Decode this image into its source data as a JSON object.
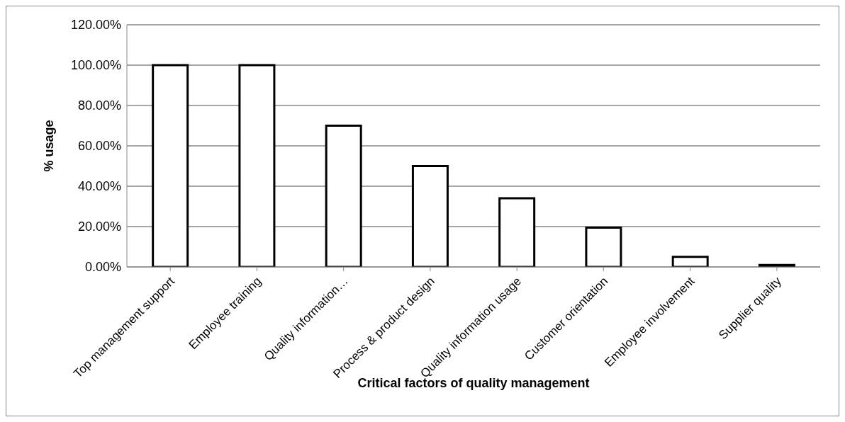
{
  "chart_data": {
    "type": "bar",
    "xlabel": "Critical factors of quality management",
    "ylabel": "% usage",
    "categories": [
      "Top management support",
      "Employee training",
      "Quality information…",
      "Process & product design",
      "Quality information usage",
      "Customer orientation",
      "Employee involvement",
      "Supplier quality"
    ],
    "values": [
      100,
      100,
      70,
      50,
      34,
      19.5,
      5,
      1
    ],
    "color": "#ffffff",
    "ylim": [
      0,
      120
    ],
    "yticks": [
      {
        "value": 0,
        "label": "0.00%"
      },
      {
        "value": 20,
        "label": "20.00%"
      },
      {
        "value": 40,
        "label": "40.00%"
      },
      {
        "value": 60,
        "label": "60.00%"
      },
      {
        "value": 80,
        "label": "80.00%"
      },
      {
        "value": 100,
        "label": "100.00%"
      },
      {
        "value": 120,
        "label": "120.00%"
      }
    ],
    "grid": "y",
    "legend": false
  }
}
